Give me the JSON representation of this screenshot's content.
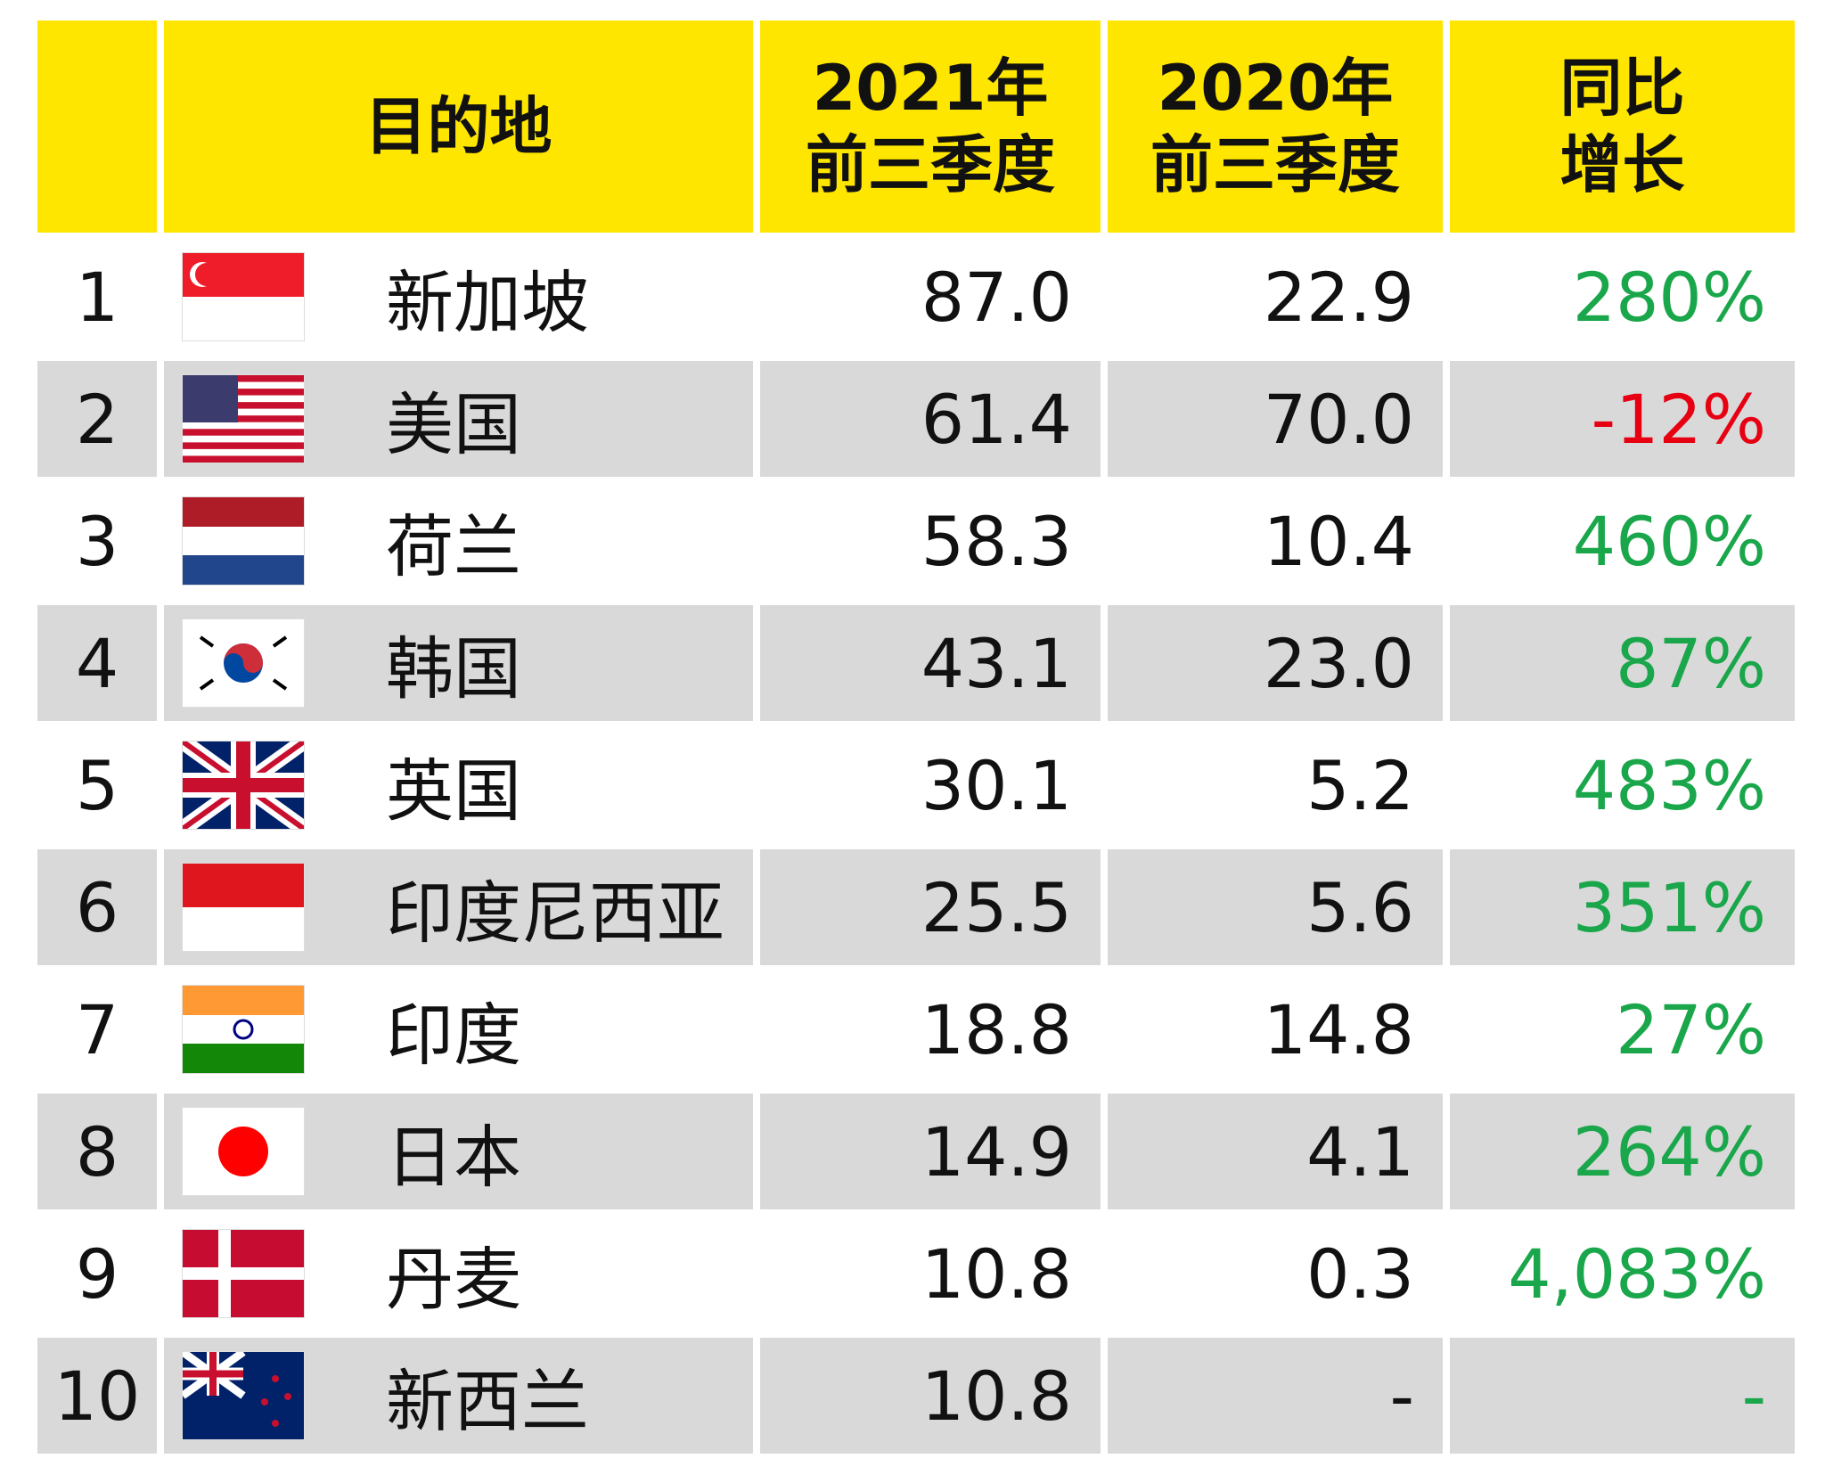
{
  "header": {
    "rank": "",
    "destination": "目的地",
    "col2021": "2021年\n前三季度",
    "col2020": "2020年\n前三季度",
    "growth": "同比\n增长"
  },
  "colors": {
    "header_bg": "#ffe600",
    "stripe": "#d9d9d9",
    "positive": "#1aa64a",
    "negative": "#e60012"
  },
  "rows": [
    {
      "rank": "1",
      "flag": "singapore-flag",
      "name": "新加坡",
      "v2021": "87.0",
      "v2020": "22.9",
      "growth": "280%",
      "trend": "up"
    },
    {
      "rank": "2",
      "flag": "usa-flag",
      "name": "美国",
      "v2021": "61.4",
      "v2020": "70.0",
      "growth": "-12%",
      "trend": "down"
    },
    {
      "rank": "3",
      "flag": "netherlands-flag",
      "name": "荷兰",
      "v2021": "58.3",
      "v2020": "10.4",
      "growth": "460%",
      "trend": "up"
    },
    {
      "rank": "4",
      "flag": "korea-flag",
      "name": "韩国",
      "v2021": "43.1",
      "v2020": "23.0",
      "growth": "87%",
      "trend": "up"
    },
    {
      "rank": "5",
      "flag": "uk-flag",
      "name": "英国",
      "v2021": "30.1",
      "v2020": "5.2",
      "growth": "483%",
      "trend": "up"
    },
    {
      "rank": "6",
      "flag": "indonesia-flag",
      "name": "印度尼西亚",
      "v2021": "25.5",
      "v2020": "5.6",
      "growth": "351%",
      "trend": "up"
    },
    {
      "rank": "7",
      "flag": "india-flag",
      "name": "印度",
      "v2021": "18.8",
      "v2020": "14.8",
      "growth": "27%",
      "trend": "up"
    },
    {
      "rank": "8",
      "flag": "japan-flag",
      "name": "日本",
      "v2021": "14.9",
      "v2020": "4.1",
      "growth": "264%",
      "trend": "up"
    },
    {
      "rank": "9",
      "flag": "denmark-flag",
      "name": "丹麦",
      "v2021": "10.8",
      "v2020": "0.3",
      "growth": "4,083%",
      "trend": "up"
    },
    {
      "rank": "10",
      "flag": "new-zealand-flag",
      "name": "新西兰",
      "v2021": "10.8",
      "v2020": "-",
      "growth": "-",
      "trend": "up"
    }
  ]
}
